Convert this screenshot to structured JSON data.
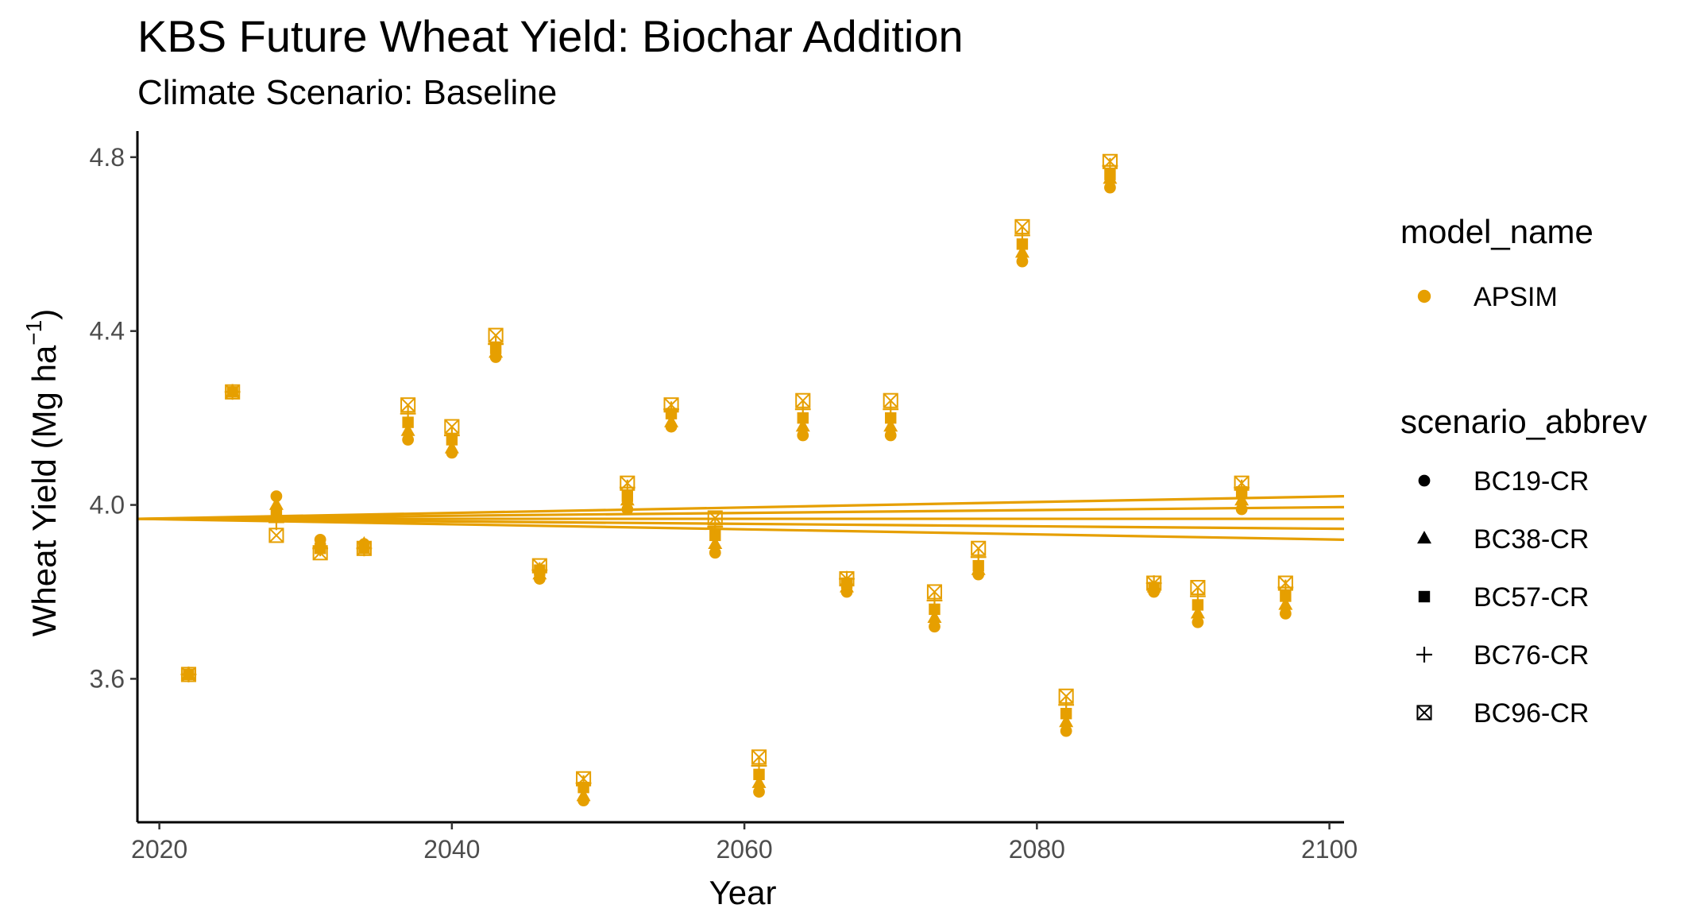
{
  "chart_data": {
    "type": "scatter",
    "title": "KBS Future Wheat Yield: Biochar Addition",
    "subtitle": "Climate Scenario: Baseline",
    "xlabel": "Year",
    "ylabel_main": "Wheat Yield (Mg ha",
    "ylabel_sup": "−1",
    "ylabel_close": ")",
    "xlim": [
      2018.5,
      2101
    ],
    "ylim": [
      3.27,
      4.86
    ],
    "x_ticks": [
      2020,
      2040,
      2060,
      2080,
      2100
    ],
    "y_ticks": [
      3.6,
      4.0,
      4.4,
      4.8
    ],
    "y_tick_labels": [
      "3.6",
      "4.0",
      "4.4",
      "4.8"
    ],
    "color": "#E69F00",
    "legend": {
      "position": "right",
      "model_title": "model_name",
      "model_items": [
        {
          "label": "APSIM",
          "shape": "circle"
        }
      ],
      "scenario_title": "scenario_abbrev",
      "scenario_items": [
        {
          "label": "BC19-CR",
          "shape": "circle"
        },
        {
          "label": "BC38-CR",
          "shape": "triangle"
        },
        {
          "label": "BC57-CR",
          "shape": "square"
        },
        {
          "label": "BC76-CR",
          "shape": "plus"
        },
        {
          "label": "BC96-CR",
          "shape": "boxx"
        }
      ]
    },
    "years": [
      2022,
      2025,
      2028,
      2031,
      2034,
      2037,
      2040,
      2043,
      2046,
      2049,
      2052,
      2055,
      2058,
      2061,
      2064,
      2067,
      2070,
      2073,
      2076,
      2079,
      2082,
      2085,
      2088,
      2091,
      2094,
      2097
    ],
    "series": [
      {
        "name": "BC19-CR",
        "shape": "circle",
        "values": [
          3.61,
          4.26,
          4.02,
          3.92,
          3.91,
          4.15,
          4.12,
          4.34,
          3.83,
          3.32,
          3.99,
          4.18,
          3.89,
          3.34,
          4.16,
          3.8,
          4.16,
          3.72,
          3.84,
          4.56,
          3.48,
          4.73,
          3.8,
          3.73,
          3.99,
          3.75
        ],
        "trend": [
          3.968,
          3.92
        ]
      },
      {
        "name": "BC38-CR",
        "shape": "triangle",
        "values": [
          3.61,
          4.26,
          4.0,
          3.91,
          3.91,
          4.17,
          4.13,
          4.35,
          3.84,
          3.33,
          4.01,
          4.19,
          3.91,
          3.36,
          4.18,
          3.81,
          4.18,
          3.74,
          3.85,
          4.58,
          3.5,
          4.75,
          3.81,
          3.75,
          4.01,
          3.77
        ],
        "trend": [
          3.968,
          3.945
        ]
      },
      {
        "name": "BC57-CR",
        "shape": "square",
        "values": [
          3.61,
          4.26,
          3.98,
          3.9,
          3.9,
          4.19,
          4.15,
          4.36,
          3.85,
          3.35,
          4.02,
          4.21,
          3.93,
          3.38,
          4.2,
          3.82,
          4.2,
          3.76,
          3.86,
          4.6,
          3.52,
          4.76,
          3.81,
          3.77,
          4.03,
          3.79
        ],
        "trend": [
          3.968,
          3.968
        ]
      },
      {
        "name": "BC76-CR",
        "shape": "plus",
        "values": [
          3.61,
          4.26,
          3.96,
          3.9,
          3.9,
          4.21,
          4.16,
          4.37,
          3.85,
          3.36,
          4.04,
          4.22,
          3.95,
          3.4,
          4.22,
          3.83,
          4.22,
          3.78,
          3.88,
          4.62,
          3.54,
          4.78,
          3.82,
          3.79,
          4.04,
          3.81
        ],
        "trend": [
          3.968,
          3.995
        ]
      },
      {
        "name": "BC96-CR",
        "shape": "boxx",
        "values": [
          3.61,
          4.26,
          3.93,
          3.89,
          3.9,
          4.23,
          4.18,
          4.39,
          3.86,
          3.37,
          4.05,
          4.23,
          3.97,
          3.42,
          4.24,
          3.83,
          4.24,
          3.8,
          3.9,
          4.64,
          3.56,
          4.79,
          3.82,
          3.81,
          4.05,
          3.82
        ],
        "trend": [
          3.968,
          4.02
        ]
      }
    ],
    "trend_years": [
      2018.5,
      2101
    ]
  }
}
